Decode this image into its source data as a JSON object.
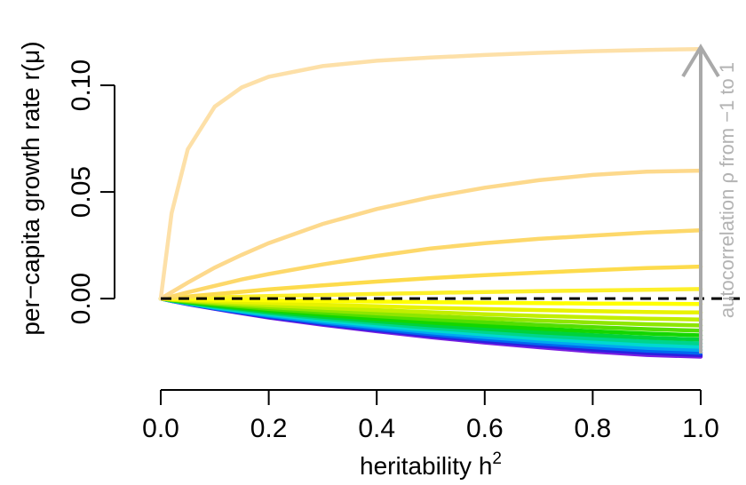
{
  "chart_data": {
    "type": "line",
    "xlabel": "heritability h",
    "xlabel_superscript": "2",
    "ylabel": "per−capita growth rate r(μ)",
    "annotation": "autocorrelation ρ from −1 to 1",
    "x_ticks": [
      "0.0",
      "0.2",
      "0.4",
      "0.6",
      "0.8",
      "1.0"
    ],
    "y_ticks": [
      "0.00",
      "0.05",
      "0.10"
    ],
    "x_tick_values": [
      0,
      0.2,
      0.4,
      0.6,
      0.8,
      1.0
    ],
    "y_tick_values": [
      0,
      0.05,
      0.1
    ],
    "xlim": [
      0,
      1
    ],
    "ylim": [
      -0.027,
      0.12
    ],
    "reference_line": {
      "y": 0,
      "style": "dashed",
      "color": "#000000"
    },
    "x": [
      0,
      0.02,
      0.05,
      0.1,
      0.15,
      0.2,
      0.3,
      0.4,
      0.5,
      0.6,
      0.7,
      0.8,
      0.9,
      1.0
    ],
    "series": [
      {
        "color": "#fde0a8",
        "values": [
          0,
          0.04,
          0.07,
          0.09,
          0.099,
          0.104,
          0.109,
          0.1115,
          0.113,
          0.1142,
          0.1152,
          0.116,
          0.1166,
          0.117
        ]
      },
      {
        "color": "#fdd98c",
        "values": [
          0,
          0.003,
          0.0075,
          0.0145,
          0.0205,
          0.026,
          0.035,
          0.042,
          0.0475,
          0.052,
          0.0555,
          0.058,
          0.0595,
          0.06
        ]
      },
      {
        "color": "#fdd86a",
        "values": [
          0,
          0.001,
          0.003,
          0.006,
          0.009,
          0.0115,
          0.016,
          0.02,
          0.0235,
          0.026,
          0.028,
          0.0295,
          0.031,
          0.032
        ]
      },
      {
        "color": "#fddb4c",
        "values": [
          0,
          0.0004,
          0.001,
          0.0021,
          0.0032,
          0.0043,
          0.0062,
          0.008,
          0.0096,
          0.011,
          0.0122,
          0.0133,
          0.0143,
          0.015
        ]
      },
      {
        "color": "#fdf02a",
        "values": [
          0,
          0.0001,
          0.0003,
          0.0006,
          0.0009,
          0.0012,
          0.0017,
          0.0022,
          0.0027,
          0.0031,
          0.0035,
          0.0038,
          0.0041,
          0.0045
        ]
      },
      {
        "color": "#ffff00",
        "values": [
          0,
          -0.0001,
          -0.0002,
          -0.0004,
          -0.0006,
          -0.0008,
          -0.0011,
          -0.0014,
          -0.0017,
          -0.0019,
          -0.0021,
          -0.0023,
          -0.0024,
          -0.0025
        ]
      },
      {
        "color": "#e8f200",
        "values": [
          0,
          -0.0003,
          -0.0006,
          -0.0011,
          -0.0016,
          -0.002,
          -0.0029,
          -0.0036,
          -0.0043,
          -0.0049,
          -0.0054,
          -0.0059,
          -0.0063,
          -0.0065
        ]
      },
      {
        "color": "#c2ee00",
        "values": [
          0,
          -0.0004,
          -0.0009,
          -0.0017,
          -0.0024,
          -0.0031,
          -0.0043,
          -0.0054,
          -0.0064,
          -0.0073,
          -0.0081,
          -0.0088,
          -0.0094,
          -0.0098
        ]
      },
      {
        "color": "#8ee600",
        "values": [
          0,
          -0.0005,
          -0.0012,
          -0.0022,
          -0.0031,
          -0.004,
          -0.0055,
          -0.0069,
          -0.0082,
          -0.0093,
          -0.0103,
          -0.0112,
          -0.012,
          -0.0126
        ]
      },
      {
        "color": "#52de00",
        "values": [
          0,
          -0.0006,
          -0.0014,
          -0.0026,
          -0.0037,
          -0.0048,
          -0.0066,
          -0.0082,
          -0.0097,
          -0.0111,
          -0.0123,
          -0.0134,
          -0.0143,
          -0.015
        ]
      },
      {
        "color": "#14d600",
        "values": [
          0,
          -0.0007,
          -0.0016,
          -0.003,
          -0.0043,
          -0.0055,
          -0.0076,
          -0.0095,
          -0.0112,
          -0.0127,
          -0.0141,
          -0.0153,
          -0.0164,
          -0.0172
        ]
      },
      {
        "color": "#00d23c",
        "values": [
          0,
          -0.0008,
          -0.0018,
          -0.0034,
          -0.0048,
          -0.0062,
          -0.0085,
          -0.0106,
          -0.0125,
          -0.0142,
          -0.0158,
          -0.0171,
          -0.0183,
          -0.0192
        ]
      },
      {
        "color": "#00d48c",
        "values": [
          0,
          -0.0008,
          -0.002,
          -0.0037,
          -0.0053,
          -0.0068,
          -0.0093,
          -0.0116,
          -0.0137,
          -0.0156,
          -0.0173,
          -0.0188,
          -0.0201,
          -0.021
        ]
      },
      {
        "color": "#00d8d0",
        "values": [
          0,
          -0.0009,
          -0.0022,
          -0.004,
          -0.0057,
          -0.0073,
          -0.0101,
          -0.0126,
          -0.0148,
          -0.0168,
          -0.0187,
          -0.0203,
          -0.0217,
          -0.0226
        ]
      },
      {
        "color": "#00a8f0",
        "values": [
          0,
          -0.001,
          -0.0023,
          -0.0043,
          -0.0061,
          -0.0078,
          -0.0108,
          -0.0134,
          -0.0158,
          -0.018,
          -0.0199,
          -0.0216,
          -0.0231,
          -0.0241
        ]
      },
      {
        "color": "#0068f0",
        "values": [
          0,
          -0.001,
          -0.0024,
          -0.0045,
          -0.0064,
          -0.0082,
          -0.0114,
          -0.0142,
          -0.0167,
          -0.019,
          -0.021,
          -0.0228,
          -0.0244,
          -0.0254
        ]
      },
      {
        "color": "#2a20e0",
        "values": [
          0,
          -0.0011,
          -0.0025,
          -0.0047,
          -0.0067,
          -0.0086,
          -0.0119,
          -0.0148,
          -0.0175,
          -0.0199,
          -0.022,
          -0.0239,
          -0.0255,
          -0.0265
        ]
      },
      {
        "color": "#7a1fe0",
        "values": [
          0,
          -0.0011,
          -0.0026,
          -0.0048,
          -0.0069,
          -0.0089,
          -0.0123,
          -0.0153,
          -0.0181,
          -0.0206,
          -0.0228,
          -0.0248,
          -0.0264,
          -0.0272
        ]
      }
    ],
    "grid": false,
    "legend": "none"
  }
}
